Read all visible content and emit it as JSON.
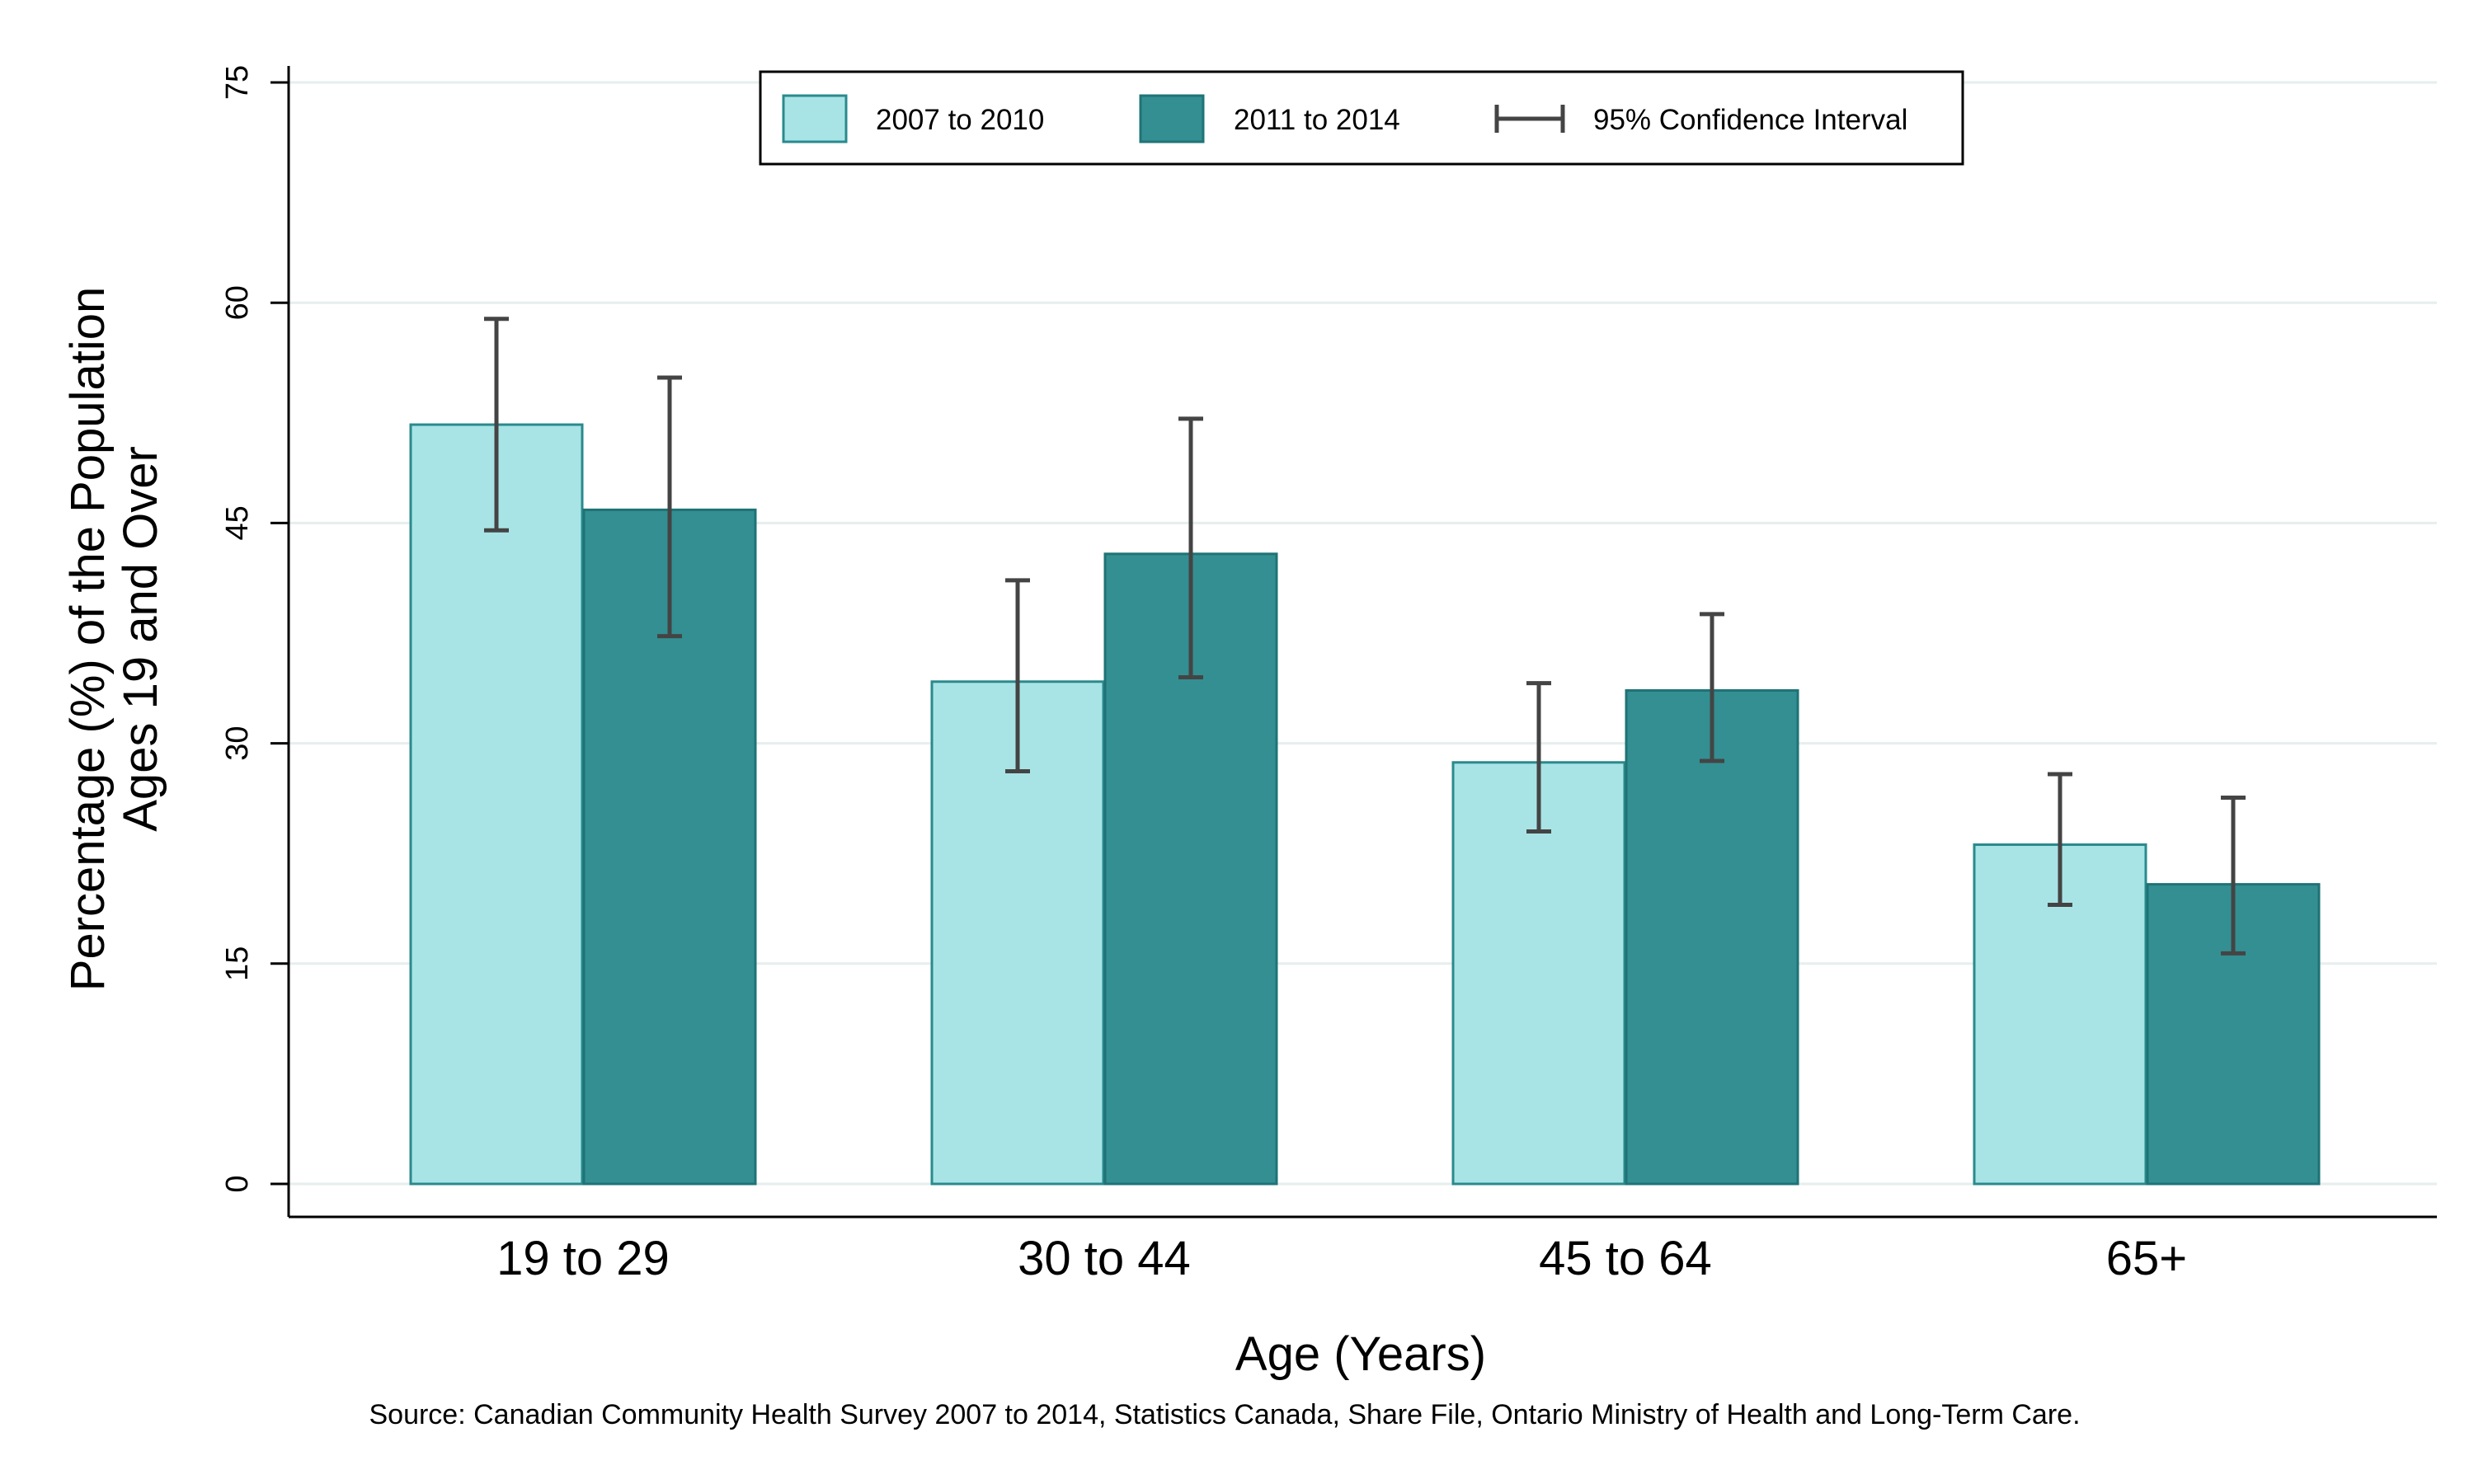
{
  "chart_data": {
    "type": "bar",
    "categories": [
      "19 to 29",
      "30 to 44",
      "45 to 64",
      "65+"
    ],
    "series": [
      {
        "name": "2007 to 2010",
        "values": [
          51.7,
          34.2,
          28.7,
          23.1
        ],
        "ci_low": [
          44.5,
          28.1,
          24.0,
          19.0
        ],
        "ci_high": [
          58.9,
          41.1,
          34.1,
          27.9
        ],
        "color": "#a8e4e6",
        "stroke": "#2a8a8c"
      },
      {
        "name": "2011 to 2014",
        "values": [
          45.9,
          42.9,
          33.6,
          20.4
        ],
        "ci_low": [
          37.3,
          34.5,
          28.8,
          15.7
        ],
        "ci_high": [
          54.9,
          52.1,
          38.8,
          26.3
        ],
        "color": "#338f92",
        "stroke": "#1f7376"
      }
    ],
    "ci_label": "95% Confidence Interval",
    "ci_color": "#444444",
    "xlabel": "Age (Years)",
    "ylabel_lines": [
      "Percentage (%) of the Population",
      "Ages 19 and Over"
    ],
    "yticks": [
      0,
      15,
      30,
      45,
      60,
      75
    ],
    "ylim": [
      0,
      75
    ],
    "grid": true,
    "legend_position": "top-center",
    "source": "Source: Canadian Community Health Survey 2007 to 2014, Statistics Canada, Share File, Ontario Ministry of Health and Long-Term Care."
  }
}
